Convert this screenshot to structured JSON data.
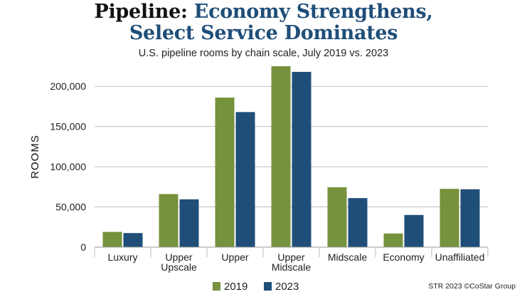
{
  "title": {
    "prefix": "Pipeline:",
    "line1_rest": "Economy Strengthens,",
    "line2": "Select Service Dominates"
  },
  "source": "STR 2023 ©CoStar Group",
  "colors": {
    "series_2019": "#76923c",
    "series_2023": "#1f4e79",
    "grid": "#bfbfbf"
  },
  "chart_data": {
    "type": "bar",
    "title": "Pipeline: Economy Strengthens, Select Service Dominates",
    "subtitle": "U.S. pipeline rooms by chain scale, July 2019 vs. 2023",
    "xlabel": "",
    "ylabel": "ROOMS",
    "ylim": [
      0,
      225000
    ],
    "yticks": [
      0,
      50000,
      100000,
      150000,
      200000
    ],
    "ytick_labels": [
      "0",
      "50,000",
      "100,000",
      "150,000",
      "200,000"
    ],
    "grid": true,
    "legend_position": "bottom-center",
    "categories": [
      [
        "Luxury"
      ],
      [
        "Upper",
        "Upscale"
      ],
      [
        "Upper"
      ],
      [
        "Upper",
        "Midscale"
      ],
      [
        "Midscale"
      ],
      [
        "Economy"
      ],
      [
        "Unaffiliated"
      ]
    ],
    "series": [
      {
        "name": "2019",
        "values": [
          19000,
          66000,
          186000,
          225000,
          74500,
          17000,
          72500
        ]
      },
      {
        "name": "2023",
        "values": [
          17500,
          59500,
          168000,
          218000,
          61000,
          40000,
          72000
        ]
      }
    ]
  }
}
